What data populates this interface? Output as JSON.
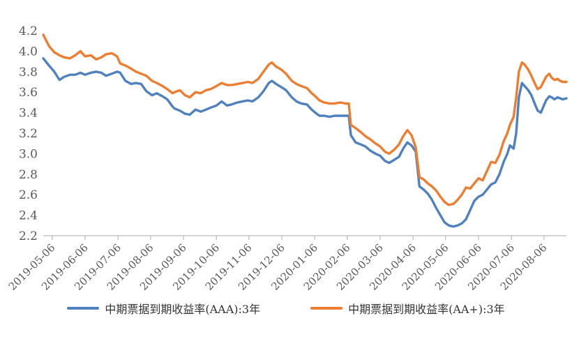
{
  "chart_data": {
    "type": "line",
    "title": "",
    "xlabel": "",
    "ylabel": "",
    "ylim": [
      2.2,
      4.2
    ],
    "y_ticks": [
      2.2,
      2.4,
      2.6,
      2.8,
      3.0,
      3.2,
      3.4,
      3.6,
      3.8,
      4.2,
      4.0
    ],
    "y_tick_values": [
      2.2,
      2.4,
      2.6,
      2.8,
      3.0,
      3.2,
      3.4,
      3.6,
      3.8,
      4.0,
      4.2
    ],
    "grid": false,
    "legend_position": "bottom",
    "x_tick_labels": [
      "2019-05-06",
      "2019-06-06",
      "2019-07-06",
      "2019-08-06",
      "2019-09-06",
      "2019-10-06",
      "2019-11-06",
      "2019-12-06",
      "2020-01-06",
      "2020-02-06",
      "2020-03-06",
      "2020-04-06",
      "2020-05-06",
      "2020-06-06",
      "2020-07-06",
      "2020-08-06"
    ],
    "x_tick_pos": [
      0.017,
      0.08,
      0.143,
      0.205,
      0.268,
      0.331,
      0.393,
      0.456,
      0.519,
      0.581,
      0.644,
      0.707,
      0.769,
      0.832,
      0.895,
      0.957
    ],
    "sample_pos": [
      0.0,
      0.011,
      0.021,
      0.031,
      0.04,
      0.051,
      0.061,
      0.071,
      0.08,
      0.091,
      0.101,
      0.111,
      0.12,
      0.131,
      0.141,
      0.147,
      0.157,
      0.168,
      0.177,
      0.187,
      0.197,
      0.208,
      0.217,
      0.228,
      0.237,
      0.247,
      0.251,
      0.261,
      0.271,
      0.28,
      0.291,
      0.301,
      0.311,
      0.32,
      0.331,
      0.341,
      0.351,
      0.36,
      0.371,
      0.381,
      0.391,
      0.4,
      0.411,
      0.421,
      0.431,
      0.437,
      0.445,
      0.455,
      0.464,
      0.475,
      0.484,
      0.493,
      0.504,
      0.513,
      0.52,
      0.528,
      0.537,
      0.547,
      0.557,
      0.568,
      0.577,
      0.584,
      0.588,
      0.597,
      0.607,
      0.616,
      0.625,
      0.635,
      0.644,
      0.653,
      0.661,
      0.671,
      0.68,
      0.688,
      0.696,
      0.704,
      0.712,
      0.719,
      0.727,
      0.735,
      0.743,
      0.751,
      0.759,
      0.767,
      0.775,
      0.784,
      0.792,
      0.8,
      0.808,
      0.816,
      0.824,
      0.832,
      0.84,
      0.848,
      0.856,
      0.864,
      0.872,
      0.88,
      0.887,
      0.892,
      0.899,
      0.904,
      0.909,
      0.915,
      0.92,
      0.927,
      0.933,
      0.94,
      0.945,
      0.951,
      0.956,
      0.961,
      0.967,
      0.972,
      0.977,
      0.983,
      0.988,
      0.993,
      1.0
    ],
    "series": [
      {
        "name": "中期票据到期收益率(AAA):3年",
        "color": "#4E81BD",
        "values": [
          3.93,
          3.86,
          3.8,
          3.72,
          3.75,
          3.77,
          3.77,
          3.79,
          3.77,
          3.79,
          3.8,
          3.79,
          3.76,
          3.78,
          3.8,
          3.79,
          3.71,
          3.68,
          3.69,
          3.68,
          3.61,
          3.57,
          3.59,
          3.56,
          3.53,
          3.46,
          3.44,
          3.42,
          3.39,
          3.38,
          3.43,
          3.41,
          3.43,
          3.45,
          3.47,
          3.51,
          3.47,
          3.48,
          3.5,
          3.51,
          3.52,
          3.51,
          3.55,
          3.61,
          3.69,
          3.71,
          3.68,
          3.65,
          3.62,
          3.55,
          3.51,
          3.49,
          3.48,
          3.43,
          3.4,
          3.37,
          3.37,
          3.36,
          3.37,
          3.37,
          3.37,
          3.37,
          3.18,
          3.11,
          3.09,
          3.07,
          3.03,
          3.0,
          2.98,
          2.93,
          2.91,
          2.94,
          2.97,
          3.05,
          3.11,
          3.08,
          3.02,
          2.68,
          2.65,
          2.61,
          2.55,
          2.47,
          2.4,
          2.33,
          2.3,
          2.29,
          2.3,
          2.32,
          2.36,
          2.45,
          2.54,
          2.58,
          2.6,
          2.65,
          2.7,
          2.72,
          2.8,
          2.92,
          3.0,
          3.08,
          3.05,
          3.2,
          3.55,
          3.69,
          3.66,
          3.62,
          3.57,
          3.48,
          3.42,
          3.4,
          3.46,
          3.52,
          3.56,
          3.55,
          3.53,
          3.55,
          3.54,
          3.53,
          3.54
        ]
      },
      {
        "name": "中期票据到期收益率(AA+):3年",
        "color": "#ED7D31",
        "values": [
          4.16,
          4.05,
          3.99,
          3.96,
          3.94,
          3.93,
          3.96,
          4.0,
          3.95,
          3.96,
          3.92,
          3.94,
          3.97,
          3.98,
          3.95,
          3.88,
          3.86,
          3.83,
          3.8,
          3.78,
          3.76,
          3.71,
          3.69,
          3.66,
          3.63,
          3.59,
          3.6,
          3.62,
          3.57,
          3.55,
          3.6,
          3.59,
          3.62,
          3.63,
          3.66,
          3.69,
          3.67,
          3.67,
          3.68,
          3.69,
          3.7,
          3.69,
          3.73,
          3.8,
          3.87,
          3.89,
          3.85,
          3.82,
          3.78,
          3.71,
          3.68,
          3.66,
          3.64,
          3.59,
          3.56,
          3.52,
          3.5,
          3.49,
          3.49,
          3.5,
          3.49,
          3.49,
          3.28,
          3.25,
          3.21,
          3.17,
          3.14,
          3.1,
          3.07,
          3.02,
          3.0,
          3.04,
          3.09,
          3.17,
          3.23,
          3.18,
          3.06,
          2.77,
          2.75,
          2.71,
          2.68,
          2.64,
          2.58,
          2.53,
          2.5,
          2.51,
          2.55,
          2.6,
          2.67,
          2.66,
          2.71,
          2.76,
          2.74,
          2.83,
          2.92,
          2.91,
          2.99,
          3.12,
          3.2,
          3.28,
          3.36,
          3.55,
          3.8,
          3.89,
          3.87,
          3.82,
          3.76,
          3.68,
          3.63,
          3.65,
          3.7,
          3.75,
          3.78,
          3.74,
          3.72,
          3.73,
          3.71,
          3.7,
          3.7
        ]
      }
    ]
  },
  "colors": {
    "axis_text": "#595959",
    "axis_line": "#C6C6C6",
    "background": "#FFFFFF"
  }
}
